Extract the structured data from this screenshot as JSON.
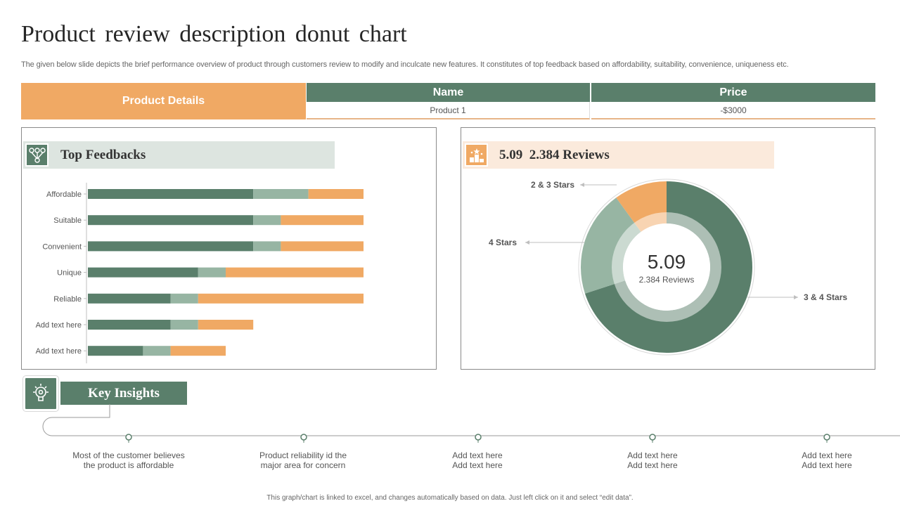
{
  "title": "Product review description donut chart",
  "subtitle": "The given below slide depicts the brief performance overview of product through customers review to modify and inculcate new features. It constitutes of top feedback based on affordability, suitability, convenience, uniqueness etc.",
  "product_table": {
    "label": "Product Details",
    "headers": [
      "Name",
      "Price"
    ],
    "row": [
      "Product 1",
      "-$3000"
    ]
  },
  "feedbacks": {
    "title": "Top Feedbacks",
    "icon": "feedback-network-icon"
  },
  "reviews": {
    "header_score": "5.09",
    "header_reviews": "2.384 Reviews",
    "icon": "podium-stars-icon",
    "center_score": "5.09",
    "center_reviews": "2.384 Reviews"
  },
  "colors": {
    "green": "#5a7f6b",
    "light_green": "#97b5a3",
    "orange": "#f0a964",
    "peach": "#fbeadc"
  },
  "chart_data": [
    {
      "type": "bar",
      "orientation": "horizontal",
      "stacked": true,
      "categories": [
        "Affordable",
        "Suitable",
        "Convenient",
        "Unique",
        "Reliable",
        "Add text here",
        "Add text here"
      ],
      "series": [
        {
          "values": [
            6,
            6,
            6,
            4,
            3,
            3,
            2
          ],
          "color": "#5a7f6b"
        },
        {
          "values": [
            2,
            1,
            1,
            1,
            1,
            1,
            1
          ],
          "color": "#97b5a3"
        },
        {
          "values": [
            2,
            3,
            3,
            5,
            6,
            2,
            2
          ],
          "color": "#f0a964"
        }
      ],
      "xlim": [
        0,
        10
      ],
      "grid": false
    },
    {
      "type": "pie",
      "donut": true,
      "slices": [
        {
          "label": "3 & 4 Stars",
          "value": 70,
          "color": "#5a7f6b"
        },
        {
          "label": "4 Stars",
          "value": 20,
          "color": "#97b5a3"
        },
        {
          "label": "2 & 3 Stars",
          "value": 10,
          "color": "#f0a964"
        }
      ]
    }
  ],
  "key_insights": {
    "label": "Key Insights",
    "icon": "lightbulb-gear-icon",
    "items": [
      {
        "line1": "Most of the customer believes",
        "line2": "the product is affordable"
      },
      {
        "line1": "Product reliability id the",
        "line2": "major area for concern"
      },
      {
        "line1": "Add text here",
        "line2": "Add text here"
      },
      {
        "line1": "Add text here",
        "line2": "Add text here"
      },
      {
        "line1": "Add text here",
        "line2": "Add text here"
      }
    ]
  },
  "footer": "This graph/chart is linked to excel, and changes automatically based on data. Just left click on it and select “edit data”."
}
